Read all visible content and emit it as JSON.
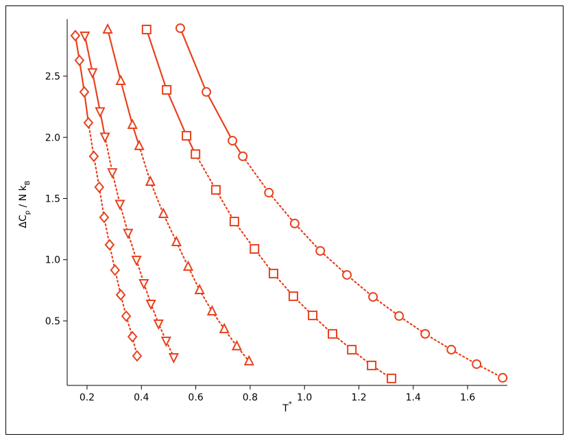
{
  "chart_data": {
    "type": "line",
    "xlabel": [
      "T",
      "*"
    ],
    "ylabel": [
      "ΔC",
      "p",
      " / N k",
      "B"
    ],
    "xlim": [
      0.127,
      1.746
    ],
    "ylim": [
      -0.027,
      2.926
    ],
    "xticks": [
      0.2,
      0.4,
      0.6,
      0.8,
      {
        "value": 1.0,
        "label": "1.0"
      },
      1.2,
      1.4,
      1.6
    ],
    "yticks": [
      0.5,
      {
        "value": 1.0,
        "label": "1.0"
      },
      1.5,
      {
        "value": 2.0,
        "label": "2.0"
      },
      2.5
    ],
    "solid_points": 4,
    "series": [
      {
        "color": "#e8401c",
        "marker": "diamond",
        "x": [
          0.157,
          0.172,
          0.19,
          0.205,
          0.225,
          0.245,
          0.263,
          0.283,
          0.303,
          0.324,
          0.344,
          0.367,
          0.384
        ],
        "values": [
          2.831,
          2.629,
          2.371,
          2.119,
          1.845,
          1.593,
          1.346,
          1.122,
          0.915,
          0.713,
          0.539,
          0.371,
          0.214
        ]
      },
      {
        "color": "#e8401c",
        "marker": "triangle-down",
        "x": [
          0.192,
          0.22,
          0.248,
          0.266,
          0.293,
          0.321,
          0.351,
          0.382,
          0.409,
          0.435,
          0.463,
          0.491,
          0.519
        ],
        "values": [
          2.831,
          2.531,
          2.212,
          2.005,
          1.714,
          1.456,
          1.219,
          0.999,
          0.808,
          0.64,
          0.478,
          0.338,
          0.203
        ]
      },
      {
        "color": "#e8401c",
        "marker": "triangle-up",
        "x": [
          0.276,
          0.324,
          0.367,
          0.392,
          0.433,
          0.481,
          0.529,
          0.572,
          0.614,
          0.66,
          0.705,
          0.751,
          0.796
        ],
        "values": [
          2.881,
          2.461,
          2.102,
          1.929,
          1.637,
          1.374,
          1.144,
          0.943,
          0.752,
          0.578,
          0.433,
          0.293,
          0.17
        ]
      },
      {
        "color": "#e8401c",
        "marker": "square",
        "x": [
          0.419,
          0.493,
          0.566,
          0.599,
          0.674,
          0.742,
          0.816,
          0.886,
          0.959,
          1.03,
          1.103,
          1.174,
          1.247,
          1.32
        ],
        "values": [
          2.881,
          2.388,
          2.013,
          1.863,
          1.571,
          1.312,
          1.088,
          0.887,
          0.702,
          0.545,
          0.394,
          0.265,
          0.136,
          0.03
        ]
      },
      {
        "color": "#e8401c",
        "marker": "circle",
        "x": [
          0.543,
          0.639,
          0.735,
          0.773,
          0.869,
          0.964,
          1.058,
          1.156,
          1.252,
          1.348,
          1.444,
          1.54,
          1.633,
          1.729
        ],
        "values": [
          2.892,
          2.371,
          1.973,
          1.845,
          1.548,
          1.296,
          1.072,
          0.876,
          0.696,
          0.54,
          0.394,
          0.265,
          0.147,
          0.035
        ]
      }
    ]
  }
}
